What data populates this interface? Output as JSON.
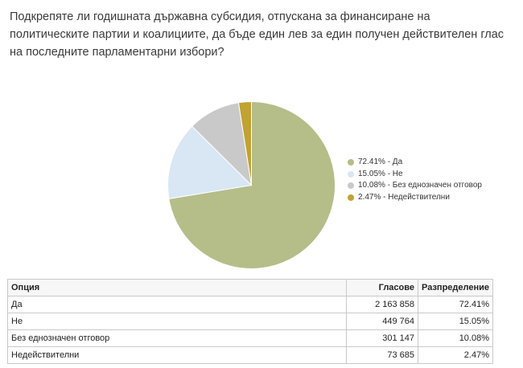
{
  "question": "Подкрепяте ли годишната държавна субсидия, отпускана за финансиране на политическите партии и коалициите, да бъде един лев за един получен действителен глас на последните парламентарни избори?",
  "chart_data": {
    "type": "pie",
    "categories": [
      "Да",
      "Не",
      "Без еднозначен отговор",
      "Недействителни"
    ],
    "values": [
      72.41,
      15.05,
      10.08,
      2.47
    ],
    "colors": [
      "#b5bd89",
      "#d8e7f3",
      "#c9c9c9",
      "#c2a230"
    ],
    "legend_placement": "right",
    "legend": [
      {
        "label": "72.41% - Да",
        "color": "#b5bd89"
      },
      {
        "label": "15.05% - Не",
        "color": "#d8e7f3"
      },
      {
        "label": "10.08% - Без еднозначен отговор",
        "color": "#c9c9c9"
      },
      {
        "label": "2.47% - Недействителни",
        "color": "#c2a230"
      }
    ]
  },
  "table": {
    "headers": {
      "option": "Опция",
      "votes": "Гласове",
      "distribution": "Разпределение"
    },
    "rows": [
      {
        "option": "Да",
        "votes": "2 163 858",
        "distribution": "72.41%"
      },
      {
        "option": "Не",
        "votes": "449 764",
        "distribution": "15.05%"
      },
      {
        "option": "Без еднозначен отговор",
        "votes": "301 147",
        "distribution": "10.08%"
      },
      {
        "option": "Недействителни",
        "votes": "73 685",
        "distribution": "2.47%"
      }
    ]
  }
}
